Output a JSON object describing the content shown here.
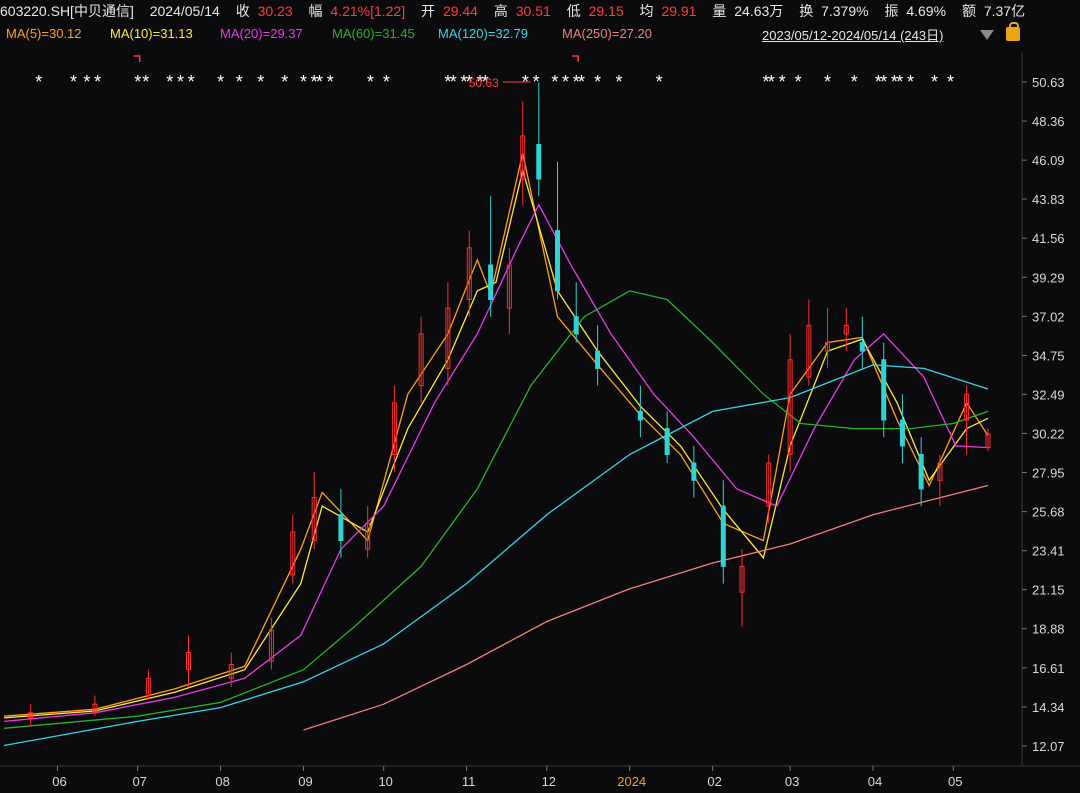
{
  "header": {
    "code": "603220.SH[中贝通信]",
    "date": "2024/05/14",
    "close_label": "收",
    "close": "30.23",
    "chg_label": "幅",
    "chg": "4.21%[1.22]",
    "open_label": "开",
    "open": "29.44",
    "high_label": "高",
    "high": "30.51",
    "low_label": "低",
    "low": "29.15",
    "avg_label": "均",
    "avg": "29.91",
    "vol_label": "量",
    "vol": "24.63万",
    "turn_label": "换",
    "turn": "7.379%",
    "amp_label": "振",
    "amp": "4.69%",
    "amt_label": "额",
    "amt": "7.37亿"
  },
  "ma_labels": [
    {
      "text": "MA(5)=30.12",
      "color": "#ff9f1a"
    },
    {
      "text": "MA(10)=31.13",
      "color": "#ffe83a"
    },
    {
      "text": "MA(20)=29.37",
      "color": "#e93ae9"
    },
    {
      "text": "MA(60)=31.45",
      "color": "#27b327"
    },
    {
      "text": "MA(120)=32.79",
      "color": "#34d6e6"
    },
    {
      "text": "MA(250)=27.20",
      "color": "#f08078"
    }
  ],
  "date_range": "2023/05/12-2024/05/14 (243日)",
  "chart_data": {
    "type": "line",
    "title": "",
    "y_ticks": [
      50.63,
      48.36,
      46.09,
      43.83,
      41.56,
      39.29,
      37.02,
      34.75,
      32.49,
      30.22,
      27.95,
      25.68,
      23.41,
      21.15,
      18.88,
      16.61,
      14.34,
      12.07
    ],
    "x_ticks": [
      "06",
      "07",
      "08",
      "09",
      "10",
      "11",
      "12",
      "2024",
      "02",
      "03",
      "04",
      "05"
    ],
    "ylim": [
      12.07,
      50.63
    ],
    "annotation": "50.63",
    "series": [
      {
        "name": "MA(5)",
        "color": "#ff9f1a",
        "x": [
          "2023-05-12",
          "2023-06-15",
          "2023-07-15",
          "2023-08-10",
          "2023-08-31",
          "2023-09-08",
          "2023-09-25",
          "2023-10-10",
          "2023-10-25",
          "2023-11-05",
          "2023-11-10",
          "2023-11-22",
          "2023-12-05",
          "2023-12-20",
          "2024-01-05",
          "2024-01-20",
          "2024-02-05",
          "2024-02-20",
          "2024-03-01",
          "2024-03-15",
          "2024-03-28",
          "2024-04-10",
          "2024-04-22",
          "2024-05-06",
          "2024-05-14"
        ],
        "values": [
          13.8,
          14.2,
          15.4,
          16.7,
          23.5,
          26.8,
          24.0,
          32.5,
          36.0,
          40.3,
          38.3,
          46.5,
          37.0,
          34.2,
          31.3,
          29.0,
          25.0,
          24.0,
          32.5,
          35.5,
          35.8,
          31.0,
          27.2,
          32.0,
          30.1
        ]
      },
      {
        "name": "MA(10)",
        "color": "#ffe83a",
        "x": [
          "2023-05-12",
          "2023-06-15",
          "2023-07-15",
          "2023-08-10",
          "2023-08-31",
          "2023-09-08",
          "2023-09-25",
          "2023-10-10",
          "2023-10-25",
          "2023-11-05",
          "2023-11-12",
          "2023-11-22",
          "2023-12-05",
          "2023-12-20",
          "2024-01-05",
          "2024-01-20",
          "2024-02-05",
          "2024-02-20",
          "2024-03-01",
          "2024-03-15",
          "2024-03-28",
          "2024-04-10",
          "2024-04-22",
          "2024-05-06",
          "2024-05-14"
        ],
        "values": [
          13.7,
          14.1,
          15.2,
          16.5,
          21.5,
          26.0,
          24.5,
          30.5,
          34.5,
          38.5,
          39.0,
          45.5,
          38.5,
          35.0,
          31.8,
          29.5,
          25.8,
          23.0,
          29.5,
          35.0,
          35.7,
          32.0,
          27.5,
          30.5,
          31.1
        ]
      },
      {
        "name": "MA(20)",
        "color": "#e93ae9",
        "x": [
          "2023-05-12",
          "2023-06-15",
          "2023-07-15",
          "2023-08-10",
          "2023-08-31",
          "2023-09-15",
          "2023-10-01",
          "2023-10-20",
          "2023-11-05",
          "2023-11-20",
          "2023-11-28",
          "2023-12-10",
          "2023-12-25",
          "2024-01-10",
          "2024-01-25",
          "2024-02-10",
          "2024-02-25",
          "2024-03-10",
          "2024-03-25",
          "2024-04-05",
          "2024-04-20",
          "2024-05-02",
          "2024-05-14"
        ],
        "values": [
          13.5,
          14.0,
          14.9,
          16.0,
          18.5,
          23.5,
          26.0,
          32.0,
          36.0,
          41.0,
          43.5,
          40.0,
          36.0,
          32.5,
          30.0,
          27.0,
          26.0,
          30.5,
          34.5,
          36.0,
          33.5,
          29.5,
          29.4
        ]
      },
      {
        "name": "MA(60)",
        "color": "#27b327",
        "x": [
          "2023-05-12",
          "2023-07-01",
          "2023-08-01",
          "2023-09-01",
          "2023-09-20",
          "2023-10-15",
          "2023-11-05",
          "2023-11-25",
          "2023-12-15",
          "2024-01-01",
          "2024-01-15",
          "2024-02-01",
          "2024-02-20",
          "2024-03-05",
          "2024-03-25",
          "2024-04-15",
          "2024-05-01",
          "2024-05-14"
        ],
        "values": [
          13.1,
          13.8,
          14.6,
          16.5,
          19.0,
          22.5,
          27.0,
          33.0,
          37.0,
          38.5,
          38.0,
          35.5,
          32.5,
          30.8,
          30.5,
          30.5,
          30.8,
          31.5
        ]
      },
      {
        "name": "MA(120)",
        "color": "#34d6e6",
        "x": [
          "2023-05-12",
          "2023-07-01",
          "2023-08-01",
          "2023-09-01",
          "2023-10-01",
          "2023-11-01",
          "2023-12-01",
          "2024-01-01",
          "2024-02-01",
          "2024-03-01",
          "2024-04-01",
          "2024-04-20",
          "2024-05-14"
        ],
        "values": [
          12.1,
          13.5,
          14.3,
          15.8,
          18.0,
          21.5,
          25.5,
          29.0,
          31.5,
          32.3,
          34.2,
          34.0,
          32.8
        ]
      },
      {
        "name": "MA(250)",
        "color": "#f08078",
        "x": [
          "2023-09-01",
          "2023-10-01",
          "2023-11-01",
          "2023-12-01",
          "2024-01-01",
          "2024-02-01",
          "2024-03-01",
          "2024-04-01",
          "2024-05-14"
        ],
        "values": [
          13.0,
          14.5,
          16.8,
          19.3,
          21.2,
          22.7,
          23.8,
          25.5,
          27.2
        ]
      }
    ],
    "candles": {
      "up_color": "#ff2e2e",
      "down_color": "#2ed3d3",
      "x": [
        "2023-05-22",
        "2023-06-15",
        "2023-07-05",
        "2023-07-20",
        "2023-08-05",
        "2023-08-20",
        "2023-08-28",
        "2023-09-05",
        "2023-09-15",
        "2023-09-25",
        "2023-10-05",
        "2023-10-15",
        "2023-10-25",
        "2023-11-02",
        "2023-11-10",
        "2023-11-17",
        "2023-11-22",
        "2023-11-28",
        "2023-12-05",
        "2023-12-12",
        "2023-12-20",
        "2024-01-05",
        "2024-01-15",
        "2024-01-25",
        "2024-02-05",
        "2024-02-12",
        "2024-02-22",
        "2024-03-01",
        "2024-03-08",
        "2024-03-15",
        "2024-03-22",
        "2024-03-28",
        "2024-04-05",
        "2024-04-12",
        "2024-04-19",
        "2024-04-26",
        "2024-05-06",
        "2024-05-14"
      ],
      "open": [
        13.7,
        14.0,
        15.0,
        16.5,
        16.0,
        17.0,
        22.0,
        24.0,
        25.5,
        23.5,
        29.0,
        33.0,
        34.0,
        38.0,
        40.0,
        37.5,
        45.0,
        47.0,
        42.0,
        37.0,
        35.0,
        31.5,
        30.5,
        28.5,
        26.0,
        21.0,
        26.0,
        29.0,
        33.5,
        35.0,
        36.0,
        35.5,
        34.5,
        31.0,
        29.0,
        27.5,
        31.0,
        29.4
      ],
      "high": [
        14.5,
        15.0,
        16.5,
        18.5,
        17.5,
        19.5,
        25.5,
        28.0,
        27.0,
        26.0,
        33.0,
        37.0,
        39.0,
        42.0,
        44.0,
        41.0,
        49.5,
        50.6,
        46.0,
        39.0,
        36.5,
        33.0,
        31.5,
        29.5,
        27.5,
        23.5,
        29.0,
        36.0,
        38.0,
        37.5,
        37.5,
        37.0,
        35.5,
        32.5,
        30.0,
        29.0,
        33.0,
        30.5
      ],
      "low": [
        13.2,
        13.8,
        14.8,
        15.5,
        15.5,
        16.5,
        21.5,
        23.5,
        23.0,
        23.0,
        28.0,
        32.0,
        33.0,
        37.0,
        37.0,
        36.0,
        43.5,
        44.0,
        38.0,
        35.5,
        33.0,
        30.0,
        28.5,
        26.5,
        21.5,
        19.0,
        25.0,
        28.0,
        33.0,
        34.0,
        35.0,
        34.0,
        30.0,
        28.5,
        26.0,
        26.0,
        29.0,
        29.2
      ],
      "close": [
        14.0,
        14.5,
        16.0,
        17.5,
        16.8,
        18.8,
        24.5,
        26.5,
        24.0,
        25.0,
        32.0,
        36.0,
        37.5,
        41.0,
        38.0,
        40.0,
        47.5,
        45.0,
        38.5,
        36.0,
        34.0,
        31.0,
        29.0,
        27.5,
        22.5,
        22.5,
        28.5,
        34.5,
        36.5,
        35.5,
        36.5,
        35.0,
        31.0,
        29.5,
        27.0,
        28.5,
        32.5,
        30.2
      ]
    }
  },
  "signal_marks": {
    "star": "*",
    "x": [
      "2023-05-25",
      "2023-06-07",
      "2023-06-12",
      "2023-06-16",
      "2023-07-01",
      "2023-07-04",
      "2023-07-13",
      "2023-07-17",
      "2023-07-21",
      "2023-08-01",
      "2023-08-08",
      "2023-08-16",
      "2023-08-25",
      "2023-09-01",
      "2023-09-05",
      "2023-09-07",
      "2023-09-11",
      "2023-09-26",
      "2023-10-02",
      "2023-10-25",
      "2023-10-27",
      "2023-10-31",
      "2023-11-02",
      "2023-11-06",
      "2023-11-08",
      "2023-11-23",
      "2023-11-27",
      "2023-12-04",
      "2023-12-08",
      "2023-12-12",
      "2023-12-14",
      "2023-12-20",
      "2023-12-28",
      "2024-01-12",
      "2024-02-21",
      "2024-02-23",
      "2024-02-27",
      "2024-03-04",
      "2024-03-15",
      "2024-03-25",
      "2024-04-03",
      "2024-04-05",
      "2024-04-09",
      "2024-04-11",
      "2024-04-15",
      "2024-04-24",
      "2024-04-30"
    ],
    "red_markers": [
      {
        "x": "2023-07-01"
      },
      {
        "x": "2023-12-12"
      }
    ]
  }
}
